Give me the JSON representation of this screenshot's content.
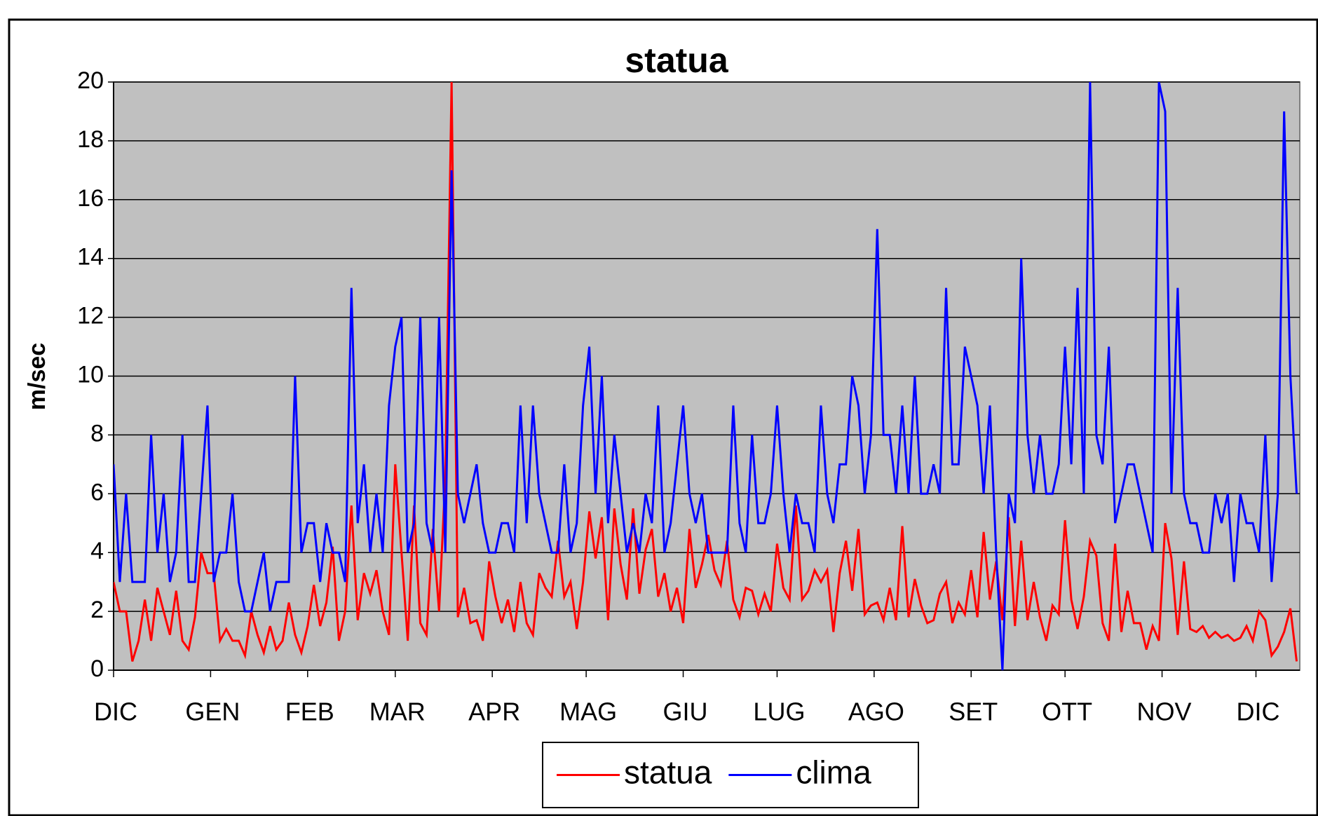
{
  "chart_data": {
    "type": "line",
    "title": "statua",
    "y_label": "m/sec",
    "x": [
      0,
      2,
      4,
      6,
      8,
      10,
      12,
      14,
      16,
      18,
      20,
      22,
      24,
      26,
      28,
      30,
      32,
      34,
      36,
      38,
      40,
      42,
      44,
      46,
      48,
      50,
      52,
      54,
      56,
      58,
      60,
      62,
      64,
      66,
      68,
      70,
      72,
      74,
      76,
      78,
      80,
      82,
      84,
      86,
      88,
      90,
      92,
      94,
      96,
      98,
      100,
      102,
      104,
      106,
      108,
      110,
      112,
      114,
      116,
      118,
      120,
      122,
      124,
      126,
      128,
      130,
      132,
      134,
      136,
      138,
      140,
      142,
      144,
      146,
      148,
      150,
      152,
      154,
      156,
      158,
      160,
      162,
      164,
      166,
      168,
      170,
      172,
      174,
      176,
      178,
      180,
      182,
      184,
      186,
      188,
      190,
      192,
      194,
      196,
      198,
      200,
      202,
      204,
      206,
      208,
      210,
      212,
      214,
      216,
      218,
      220,
      222,
      224,
      226,
      228,
      230,
      232,
      234,
      236,
      238,
      240,
      242,
      244,
      246,
      248,
      250,
      252,
      254,
      256,
      258,
      260,
      262,
      264,
      266,
      268,
      270,
      272,
      274,
      276,
      278,
      280,
      282,
      284,
      286,
      288,
      290,
      292,
      294,
      296,
      298,
      300,
      302,
      304,
      306,
      308,
      310,
      312,
      314,
      316,
      318,
      320,
      322,
      324,
      326,
      328,
      330,
      332,
      334,
      336,
      338,
      340,
      342,
      344,
      346,
      348,
      350,
      352,
      354,
      356,
      358,
      360,
      362,
      364,
      366,
      368,
      370,
      372,
      374,
      376,
      378
    ],
    "series": [
      {
        "name": "statua",
        "color": "#ff0000",
        "values": [
          3,
          2,
          2,
          0.3,
          1,
          2.4,
          1,
          2.8,
          2,
          1.2,
          2.7,
          1,
          0.7,
          1.8,
          4,
          3.3,
          3.3,
          1,
          1.4,
          1,
          1,
          0.5,
          2,
          1.2,
          0.6,
          1.5,
          0.7,
          1,
          2.3,
          1.2,
          0.6,
          1.5,
          2.9,
          1.5,
          2.3,
          4.2,
          1,
          2,
          5.6,
          1.7,
          3.3,
          2.6,
          3.4,
          2,
          1.2,
          7,
          4,
          1,
          5.6,
          1.6,
          1.2,
          4.8,
          2,
          6.6,
          20,
          1.8,
          2.8,
          1.6,
          1.7,
          1,
          3.7,
          2.5,
          1.6,
          2.4,
          1.3,
          3,
          1.6,
          1.2,
          3.3,
          2.8,
          2.5,
          4.4,
          2.5,
          3,
          1.4,
          3,
          5.4,
          3.8,
          5.2,
          1.7,
          5.5,
          3.6,
          2.4,
          5.5,
          2.6,
          4.1,
          4.8,
          2.5,
          3.3,
          2,
          2.8,
          1.6,
          4.8,
          2.8,
          3.6,
          4.6,
          3.4,
          2.9,
          4.4,
          2.4,
          1.8,
          2.8,
          2.7,
          1.9,
          2.6,
          2,
          4.3,
          2.8,
          2.4,
          5.6,
          2.4,
          2.7,
          3.4,
          3,
          3.4,
          1.3,
          3.3,
          4.4,
          2.7,
          4.8,
          1.9,
          2.2,
          2.3,
          1.7,
          2.8,
          1.7,
          4.9,
          1.8,
          3.1,
          2.2,
          1.6,
          1.7,
          2.6,
          3,
          1.6,
          2.3,
          1.9,
          3.4,
          1.8,
          4.7,
          2.4,
          3.7,
          1.7,
          5.2,
          1.5,
          4.4,
          1.7,
          3,
          1.8,
          1,
          2.2,
          1.9,
          5.1,
          2.4,
          1.4,
          2.5,
          4.4,
          3.9,
          1.6,
          1,
          4.3,
          1.3,
          2.7,
          1.6,
          1.6,
          0.7,
          1.5,
          1,
          5,
          3.8,
          1.2,
          3.7,
          1.4,
          1.3,
          1.5,
          1.1,
          1.3,
          1.1,
          1.2,
          1,
          1.1,
          1.5,
          1,
          2,
          1.7,
          0.5,
          0.8,
          1.3,
          2.1,
          0.3
        ]
      },
      {
        "name": "clima",
        "color": "#0000ff",
        "values": [
          7,
          3,
          6,
          3,
          3,
          3,
          8,
          4,
          6,
          3,
          4,
          8,
          3,
          3,
          6,
          9,
          3,
          4,
          4,
          6,
          3,
          2,
          2,
          3,
          4,
          2,
          3,
          3,
          3,
          10,
          4,
          5,
          5,
          3,
          5,
          4,
          4,
          3,
          13,
          5,
          7,
          4,
          6,
          4,
          9,
          11,
          12,
          4,
          5,
          12,
          5,
          4,
          12,
          4,
          17,
          6,
          5,
          6,
          7,
          5,
          4,
          4,
          5,
          5,
          4,
          9,
          5,
          9,
          6,
          5,
          4,
          4,
          7,
          4,
          5,
          9,
          11,
          6,
          10,
          5,
          8,
          6,
          4,
          5,
          4,
          6,
          5,
          9,
          4,
          5,
          7,
          9,
          6,
          5,
          6,
          4,
          4,
          4,
          4,
          9,
          5,
          4,
          8,
          5,
          5,
          6,
          9,
          6,
          4,
          6,
          5,
          5,
          4,
          9,
          6,
          5,
          7,
          7,
          10,
          9,
          6,
          8,
          15,
          8,
          8,
          6,
          9,
          6,
          10,
          6,
          6,
          7,
          6,
          13,
          7,
          7,
          11,
          10,
          9,
          6,
          9,
          4,
          0,
          6,
          5,
          14,
          8,
          6,
          8,
          6,
          6,
          7,
          11,
          7,
          13,
          6,
          20,
          8,
          7,
          11,
          5,
          6,
          7,
          7,
          6,
          5,
          4,
          20,
          19,
          6,
          13,
          6,
          5,
          5,
          4,
          4,
          6,
          5,
          6,
          3,
          6,
          5,
          5,
          4,
          8,
          3,
          6,
          19,
          10,
          6
        ]
      }
    ],
    "xlim": [
      0,
      379
    ],
    "xticks": [
      {
        "value": 0,
        "label": "DIC"
      },
      {
        "value": 31,
        "label": "GEN"
      },
      {
        "value": 62,
        "label": "FEB"
      },
      {
        "value": 90,
        "label": "MAR"
      },
      {
        "value": 121,
        "label": "APR"
      },
      {
        "value": 151,
        "label": "MAG"
      },
      {
        "value": 182,
        "label": "GIU"
      },
      {
        "value": 212,
        "label": "LUG"
      },
      {
        "value": 243,
        "label": "AGO"
      },
      {
        "value": 274,
        "label": "SET"
      },
      {
        "value": 304,
        "label": "OTT"
      },
      {
        "value": 335,
        "label": "NOV"
      },
      {
        "value": 365,
        "label": "DIC"
      }
    ],
    "ylim": [
      0,
      20
    ],
    "yticks": [
      0,
      2,
      4,
      6,
      8,
      10,
      12,
      14,
      16,
      18,
      20
    ],
    "grid": true,
    "background": "#c0c0c0",
    "legend": "bottom"
  }
}
